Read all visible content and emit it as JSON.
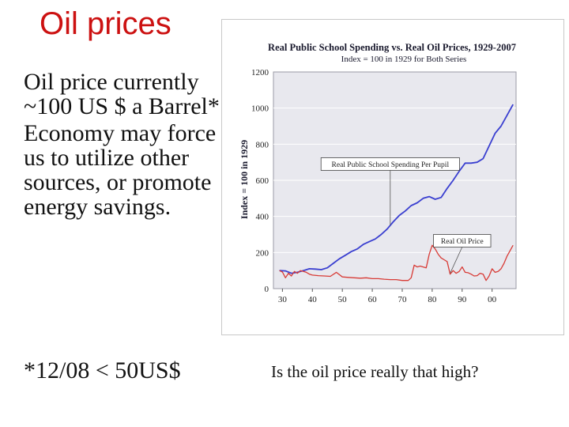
{
  "slide": {
    "title": "Oil prices",
    "bullet1": "Oil price currently ~100 US $ a Barrel*",
    "bullet2": "Economy may force us to utilize other sources, or promote energy savings.",
    "footnote": "*12/08 < 50US$",
    "caption": "Is the oil price really that high?"
  },
  "chart_data": {
    "type": "line",
    "title": "Real Public School Spending vs. Real Oil Prices, 1929-2007",
    "subtitle": "Index = 100 in 1929 for Both Series",
    "ylabel": "Index = 100 in 1929",
    "xlabel": "",
    "xlim": [
      1927,
      2008
    ],
    "ylim": [
      0,
      1200
    ],
    "yticks": [
      0,
      200,
      400,
      600,
      800,
      1000,
      1200
    ],
    "xticks": [
      {
        "value": 1930,
        "label": "30"
      },
      {
        "value": 1940,
        "label": "40"
      },
      {
        "value": 1950,
        "label": "50"
      },
      {
        "value": 1960,
        "label": "60"
      },
      {
        "value": 1970,
        "label": "70"
      },
      {
        "value": 1980,
        "label": "80"
      },
      {
        "value": 1990,
        "label": "90"
      },
      {
        "value": 2000,
        "label": "00"
      }
    ],
    "colors": {
      "spending": "#3a3fd0",
      "oil": "#d83b36",
      "plot_bg": "#e8e8ee"
    },
    "series": [
      {
        "name": "Real Public School Spending Per Pupil",
        "key": "spending",
        "x": [
          1929,
          1931,
          1933,
          1935,
          1937,
          1939,
          1941,
          1943,
          1945,
          1947,
          1949,
          1951,
          1953,
          1955,
          1957,
          1959,
          1961,
          1963,
          1965,
          1967,
          1969,
          1971,
          1973,
          1975,
          1977,
          1979,
          1981,
          1983,
          1985,
          1987,
          1989,
          1991,
          1993,
          1995,
          1997,
          1999,
          2001,
          2003,
          2005,
          2007
        ],
        "y": [
          100,
          98,
          85,
          90,
          100,
          110,
          108,
          105,
          115,
          140,
          165,
          185,
          205,
          220,
          245,
          260,
          275,
          300,
          330,
          370,
          405,
          430,
          460,
          475,
          500,
          510,
          495,
          505,
          555,
          600,
          650,
          695,
          695,
          700,
          720,
          790,
          860,
          900,
          960,
          1020
        ]
      },
      {
        "name": "Real Oil Price",
        "key": "oil",
        "x": [
          1929,
          1930,
          1931,
          1932,
          1933,
          1934,
          1935,
          1936,
          1937,
          1938,
          1939,
          1940,
          1942,
          1944,
          1946,
          1948,
          1950,
          1952,
          1954,
          1956,
          1958,
          1960,
          1962,
          1964,
          1966,
          1968,
          1970,
          1972,
          1973,
          1974,
          1975,
          1976,
          1977,
          1978,
          1979,
          1980,
          1981,
          1982,
          1983,
          1984,
          1985,
          1986,
          1987,
          1988,
          1989,
          1990,
          1991,
          1992,
          1993,
          1994,
          1995,
          1996,
          1997,
          1998,
          1999,
          2000,
          2001,
          2002,
          2003,
          2004,
          2005,
          2006,
          2007
        ],
        "y": [
          100,
          92,
          60,
          85,
          70,
          95,
          85,
          100,
          95,
          90,
          80,
          75,
          72,
          70,
          68,
          90,
          65,
          62,
          60,
          58,
          60,
          55,
          55,
          52,
          50,
          50,
          45,
          45,
          60,
          130,
          120,
          125,
          120,
          115,
          190,
          240,
          220,
          190,
          170,
          160,
          150,
          80,
          100,
          85,
          95,
          120,
          90,
          88,
          80,
          70,
          72,
          85,
          80,
          45,
          70,
          110,
          90,
          95,
          110,
          140,
          180,
          210,
          240
        ]
      }
    ],
    "annotations": [
      {
        "text": "Real Public School Spending Per Pupil",
        "series": "spending",
        "label_x": 1966,
        "label_y": 690,
        "target_x": 1966,
        "target_y": 352
      },
      {
        "text": "Real Oil Price",
        "series": "oil",
        "label_x": 1990,
        "label_y": 265,
        "target_x": 1986,
        "target_y": 85
      }
    ]
  }
}
